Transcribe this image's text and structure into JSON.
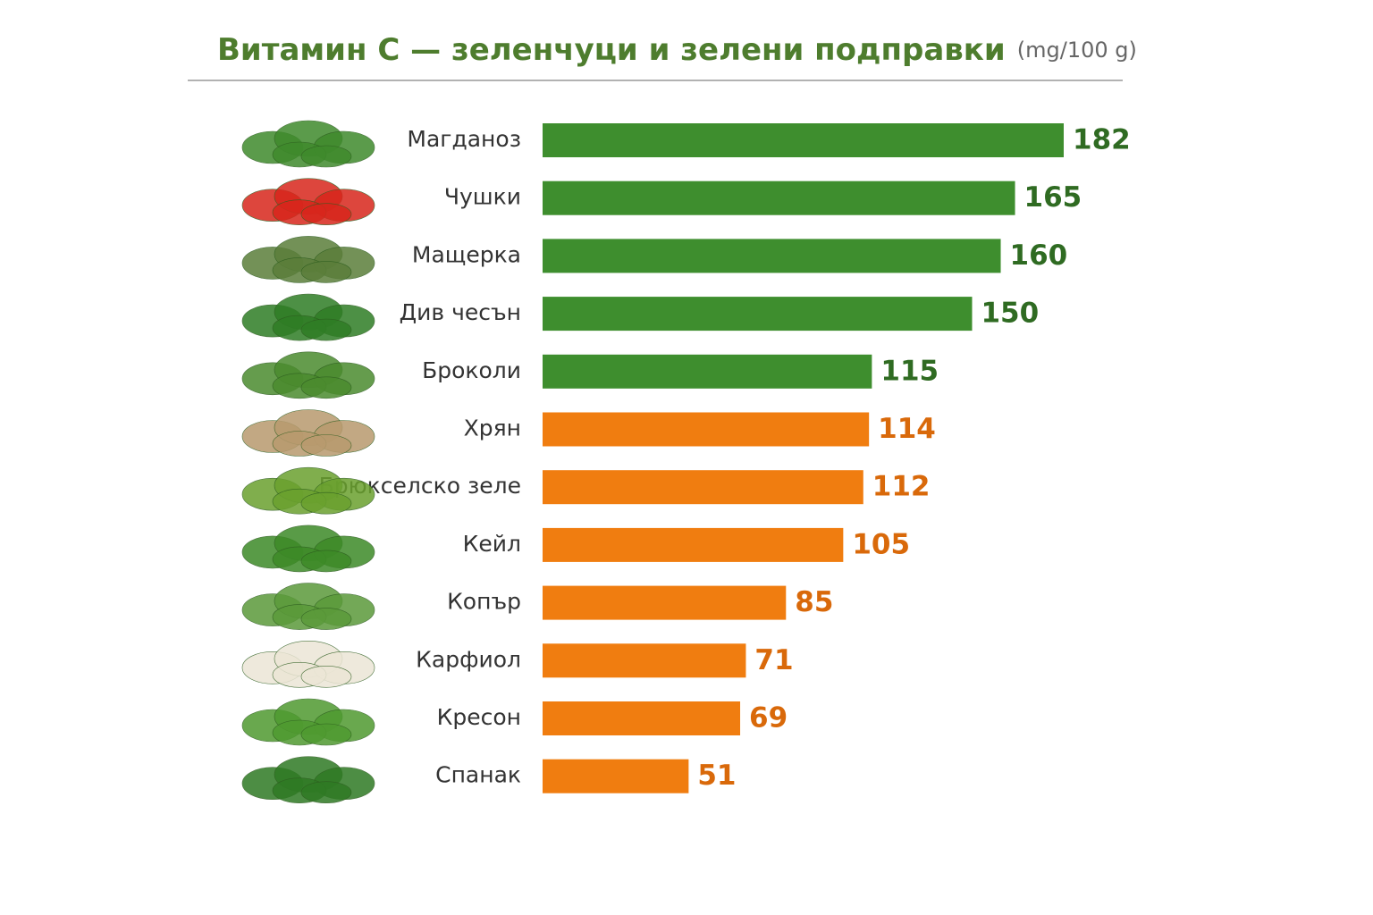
{
  "chart_data": {
    "type": "bar",
    "orientation": "horizontal",
    "title": "Витамин С — зеленчуци и зелени подправки",
    "unit": "(mg/100 g)",
    "categories": [
      "Магданоз",
      "Чушки",
      "Мащерка",
      "Див чесън",
      "Броколи",
      "Хрян",
      "Брюкселско зеле",
      "Кейл",
      "Копър",
      "Карфиол",
      "Кресон",
      "Спанак"
    ],
    "values": [
      182,
      165,
      160,
      150,
      115,
      114,
      112,
      105,
      85,
      71,
      69,
      51
    ],
    "colors": [
      "#3e8e2e",
      "#3e8e2e",
      "#3e8e2e",
      "#3e8e2e",
      "#3e8e2e",
      "#f07d10",
      "#f07d10",
      "#f07d10",
      "#f07d10",
      "#f07d10",
      "#f07d10",
      "#f07d10"
    ],
    "value_label_colors": [
      "#2f6b22",
      "#2f6b22",
      "#2f6b22",
      "#2f6b22",
      "#2f6b22",
      "#d9690a",
      "#d9690a",
      "#d9690a",
      "#d9690a",
      "#d9690a",
      "#d9690a",
      "#d9690a"
    ]
  }
}
